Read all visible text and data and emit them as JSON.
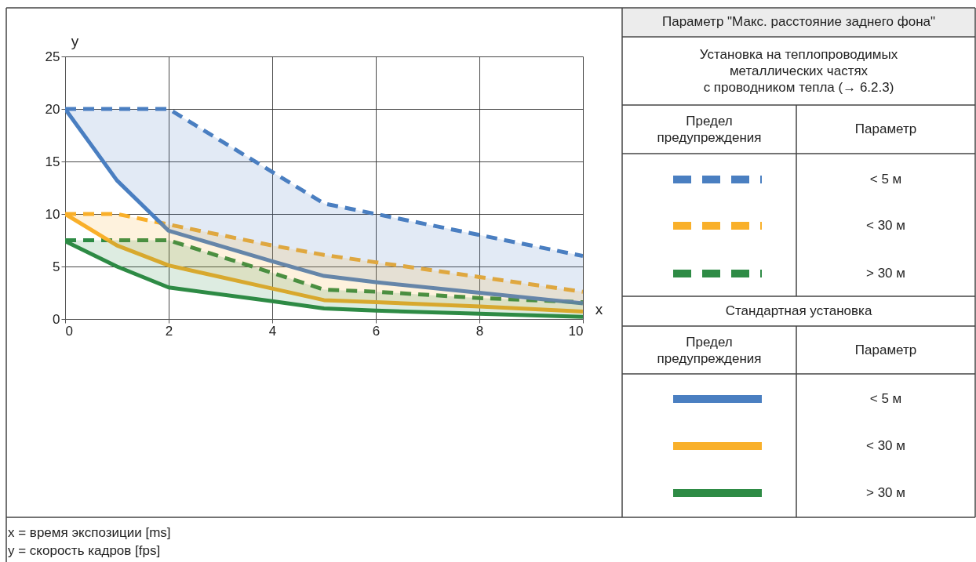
{
  "chart_data": {
    "type": "line",
    "xlabel": "x",
    "ylabel": "y",
    "legend_title": "Параметр \"Макс. расстояние заднего фона\"",
    "x": [
      0,
      1,
      2,
      4,
      5,
      6,
      8,
      10
    ],
    "series": [
      {
        "name": "< 5 м",
        "color": "#4a7fc1",
        "line_style": "dashed",
        "values": [
          20,
          20,
          20,
          14,
          11,
          10,
          8,
          6
        ],
        "lower": [
          20,
          13.2,
          8.4,
          5.5,
          4.1,
          3.5,
          2.5,
          1.5
        ],
        "upper": [
          20,
          20,
          20,
          14,
          11,
          10,
          8,
          6
        ]
      },
      {
        "name": "< 30 м",
        "color": "#f9b02a",
        "line_style": "dashed",
        "values": [
          10,
          10,
          9,
          7,
          6.1,
          5.4,
          4,
          2.6
        ],
        "lower": [
          10,
          7,
          5.1,
          2.9,
          1.8,
          1.6,
          1.2,
          0.7
        ],
        "upper": [
          10,
          10,
          9,
          7,
          6.1,
          5.4,
          4,
          2.6
        ]
      },
      {
        "name": "> 30 м",
        "color": "#2e8b45",
        "line_style": "dashed",
        "values": [
          7.5,
          7.5,
          7.5,
          4.4,
          2.8,
          2.6,
          2,
          1.6
        ],
        "lower": [
          7.4,
          5,
          3,
          1.7,
          1,
          0.8,
          0.5,
          0.2
        ],
        "upper": [
          7.5,
          7.5,
          7.5,
          4.4,
          2.8,
          2.6,
          2,
          1.6
        ]
      },
      {
        "name": "< 5 м",
        "color": "#4a7fc1",
        "line_style": "solid",
        "values": [
          20,
          13.2,
          8.4,
          5.5,
          4.1,
          3.5,
          2.5,
          1.5
        ]
      },
      {
        "name": "< 30 м",
        "color": "#f9b02a",
        "line_style": "solid",
        "values": [
          10,
          7,
          5.1,
          2.9,
          1.8,
          1.6,
          1.2,
          0.7
        ]
      },
      {
        "name": "> 30 м",
        "color": "#2e8b45",
        "line_style": "solid",
        "values": [
          7.4,
          5,
          3,
          1.7,
          1,
          0.8,
          0.5,
          0.2
        ]
      }
    ],
    "xlim": [
      0,
      10
    ],
    "xticks": [
      0,
      2,
      4,
      6,
      8,
      10
    ],
    "ylim": [
      0,
      25
    ],
    "yticks": [
      0,
      5,
      10,
      15,
      20,
      25
    ],
    "grid": true,
    "legend": "right",
    "annotations": [
      "Установка на теплопроводимых\nметаллических частях\nс проводником тепла (→ 6.2.3)",
      "Предел\nпредупреждения",
      "Параметр",
      "Стандартная установка",
      "x = время экспозиции [ms]",
      "y = скорость кадров [fps]"
    ]
  }
}
